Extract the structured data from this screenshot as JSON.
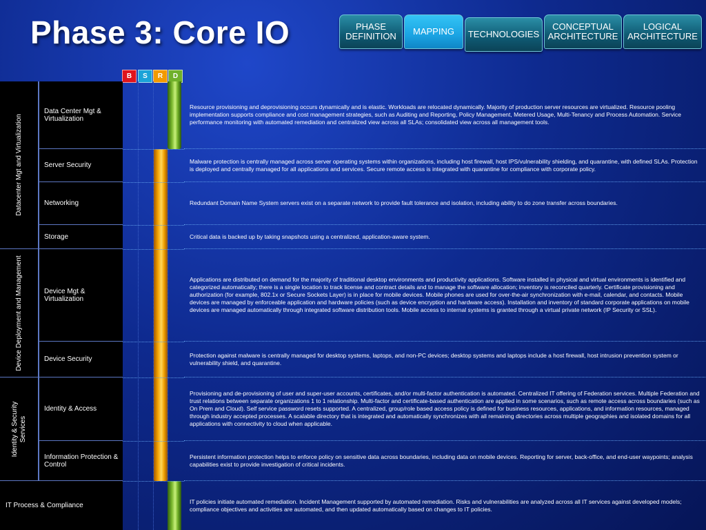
{
  "title": "Phase 3: Core IO",
  "tabs": [
    {
      "label": "PHASE DEFINITION",
      "active": false
    },
    {
      "label": "MAPPING",
      "active": true
    },
    {
      "label": "TECHNOLOGIES",
      "active": false
    },
    {
      "label": "CONCEPTUAL ARCHITECTURE",
      "active": false
    },
    {
      "label": "LOGICAL ARCHITECTURE",
      "active": false
    }
  ],
  "maturity_levels": [
    {
      "label": "B",
      "color": "#e0141c"
    },
    {
      "label": "S",
      "color": "#1aa3d8"
    },
    {
      "label": "R",
      "color": "#f29a00"
    },
    {
      "label": "D",
      "color": "#6fb02a"
    }
  ],
  "categories": [
    {
      "label": "Datacenter Mgt and Virtualization"
    },
    {
      "label": "Device Deployment and Management"
    },
    {
      "label": "Identity & Security Services"
    },
    {
      "label": "IT Process & Compliance"
    }
  ],
  "rows": [
    {
      "name": "Data Center Mgt & Virtualization",
      "level": "D",
      "description": "Resource provisioning and deprovisioning occurs dynamically and is elastic. Workloads are relocated dynamically. Majority of production server resources are virtualized. Resource pooling implementation supports compliance and cost management strategies, such as Auditing and Reporting, Policy Management, Metered Usage, Multi-Tenancy and Process Automation. Service performance monitoring with automated remediation and centralized view across all SLAs; consolidated view across all management tools."
    },
    {
      "name": "Server Security",
      "level": "R",
      "description": "Malware protection is centrally managed across server operating systems within organizations, including host firewall, host IPS/vulnerability shielding, and quarantine, with defined SLAs. Protection is deployed and centrally managed for all applications and services.  Secure remote access is integrated with quarantine for compliance with corporate policy."
    },
    {
      "name": "Networking",
      "level": "R",
      "description": "Redundant Domain Name System servers exist on a separate network to provide fault tolerance and isolation, including ability to do zone transfer across boundaries."
    },
    {
      "name": "Storage",
      "level": "R",
      "description": "Critical data is backed up by taking snapshots using a centralized, application-aware system."
    },
    {
      "name": "Device Mgt & Virtualization",
      "level": "R",
      "description": "Applications are distributed on demand for the majority of traditional desktop environments and productivity applications. Software installed in physical and virtual environments is identified and categorized automatically; there is a single location to track license and contract details and to manage the software allocation; inventory is reconciled quarterly. Certificate provisioning and authorization (for example, 802.1x or Secure Sockets Layer) is in place for mobile devices. Mobile phones are used for over-the-air synchronization with e-mail, calendar, and contacts. Mobile devices are managed by enforceable application and hardware policies (such as device encryption and hardware access). Installation and inventory of standard corporate applications on mobile devices are managed automatically through integrated software distribution tools. Mobile access to internal systems is granted through a virtual private network (IP Security or SSL)."
    },
    {
      "name": "Device Security",
      "level": "R",
      "description": "Protection against malware is centrally managed for desktop systems, laptops, and non-PC devices; desktop systems and laptops include a host firewall, host intrusion prevention system or vulnerability shield, and quarantine."
    },
    {
      "name": "Identity & Access",
      "level": "R",
      "description": "Provisioning and de-provisioning of user and super-user accounts, certificates, and/or multi-factor authentication is automated. Centralized IT offering of Federation services. Multiple Federation and trust relations between separate organizations 1 to 1 relationship. Multi-factor and certificate-based authentication are applied in some scenarios, such as remote access across boundaries (such as On Prem and Cloud). Self service password resets supported. A centralized, group/role based access policy is defined for business resources, applications, and information resources, managed through industry accepted processes. A scalable directory that is integrated and automatically synchronizes with all remaining directories across multiple geographies and isolated domains for all applications with connectivity to cloud when applicable."
    },
    {
      "name": "Information Protection & Control",
      "level": "R",
      "description": "Persistent information protection helps to enforce policy on sensitive data across boundaries, including data on mobile devices. Reporting for server, back-office, and end-user waypoints; analysis capabilities exist to provide investigation of critical incidents."
    },
    {
      "name": "IT Process & Compliance",
      "level": "D",
      "description": "IT policies initiate automated remediation. Incident Management supported by automated remediation. Risks and vulnerabilities are analyzed across all IT services against developed models; compliance objectives and activities are automated, and then updated automatically based on changes to IT policies."
    }
  ]
}
